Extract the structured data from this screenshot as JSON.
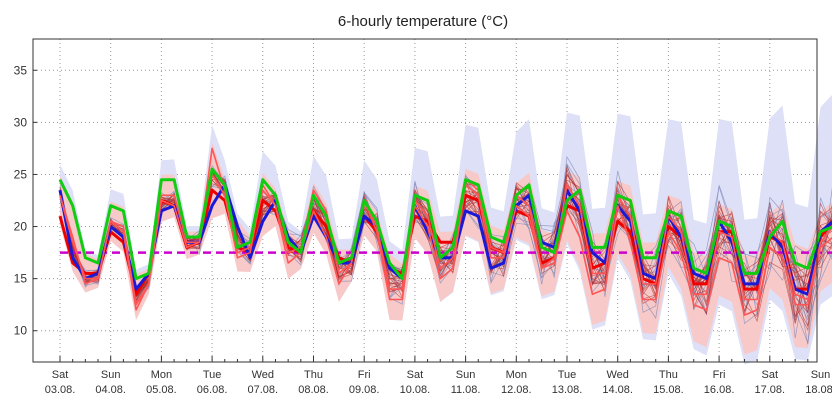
{
  "chart_data": {
    "type": "line",
    "title": "6-hourly temperature (°C)",
    "xlabel": "",
    "ylabel": "",
    "ylim": [
      7,
      38
    ],
    "y_ticks": [
      10,
      15,
      20,
      25,
      30,
      35
    ],
    "grid": true,
    "legend": "none",
    "x_ticks": [
      {
        "day": "Sat",
        "date": "03.08."
      },
      {
        "day": "Sun",
        "date": "04.08."
      },
      {
        "day": "Mon",
        "date": "05.08."
      },
      {
        "day": "Tue",
        "date": "06.08."
      },
      {
        "day": "Wed",
        "date": "07.08."
      },
      {
        "day": "Thu",
        "date": "08.08."
      },
      {
        "day": "Fri",
        "date": "09.08."
      },
      {
        "day": "Sat",
        "date": "10.08."
      },
      {
        "day": "Sun",
        "date": "11.08."
      },
      {
        "day": "Mon",
        "date": "12.08."
      },
      {
        "day": "Tue",
        "date": "13.08."
      },
      {
        "day": "Wed",
        "date": "14.08."
      },
      {
        "day": "Thu",
        "date": "15.08."
      },
      {
        "day": "Fri",
        "date": "16.08."
      },
      {
        "day": "Sat",
        "date": "17.08."
      },
      {
        "day": "Sun",
        "date": "18.08."
      }
    ],
    "x_step_hours": 6,
    "reference_line": {
      "value": 17.5,
      "color": "#cc00cc"
    },
    "colors": {
      "blue_spread_fill": "#dde0f7",
      "blue_members": "#7d88b8",
      "red_spread_fill": "#f7c9c9",
      "red_members": "#b03030",
      "blue_mean": "#1a1ad6",
      "red_mean": "#ee0000",
      "green_line": "#11cc11",
      "red_thin_line": "#ff5555"
    },
    "series": [
      {
        "values": [
          23.5,
          17.0,
          15.0,
          15.5,
          20.0,
          19.0,
          14.0,
          15.5,
          21.5,
          22.0,
          18.5,
          18.5,
          22.0,
          24.0,
          20.0,
          17.0,
          20.5,
          22.5,
          19.0,
          17.5,
          21.0,
          19.0,
          16.5,
          16.5,
          21.0,
          20.0,
          16.0,
          15.0,
          22.0,
          19.5,
          17.0,
          17.0,
          21.5,
          21.0,
          16.0,
          16.5,
          22.0,
          23.0,
          18.5,
          18.0,
          23.5,
          21.5,
          17.5,
          16.5,
          22.0,
          20.5,
          15.5,
          15.0,
          21.0,
          19.0,
          15.5,
          15.0,
          20.5,
          18.5,
          14.5,
          14.5,
          19.5,
          18.0,
          14.0,
          13.5,
          19.5,
          20.5
        ]
      },
      {
        "values": [
          21.0,
          16.5,
          15.5,
          15.5,
          19.5,
          18.5,
          13.5,
          15.5,
          22.5,
          22.0,
          18.0,
          18.5,
          23.5,
          22.5,
          18.0,
          17.5,
          22.5,
          21.5,
          18.0,
          17.5,
          21.5,
          20.0,
          17.0,
          16.5,
          21.0,
          19.5,
          16.0,
          15.5,
          21.0,
          20.5,
          18.5,
          18.5,
          23.0,
          22.5,
          18.0,
          17.5,
          21.5,
          21.0,
          16.5,
          17.0,
          22.0,
          21.5,
          16.0,
          16.5,
          20.5,
          19.5,
          15.0,
          14.5,
          20.0,
          19.0,
          14.5,
          14.5,
          19.5,
          19.5,
          14.0,
          14.0,
          19.0,
          18.5,
          14.0,
          14.0,
          19.0,
          20.5
        ]
      },
      {
        "values": [
          24.5,
          22.0,
          17.0,
          16.5,
          22.0,
          21.5,
          15.0,
          15.5,
          24.5,
          24.5,
          19.0,
          19.0,
          25.5,
          24.0,
          18.0,
          18.5,
          24.5,
          23.0,
          18.5,
          17.5,
          23.0,
          21.0,
          16.5,
          17.0,
          22.5,
          20.5,
          16.5,
          15.0,
          23.0,
          22.5,
          17.0,
          18.0,
          24.5,
          24.0,
          19.0,
          18.5,
          23.0,
          24.0,
          18.0,
          17.5,
          22.5,
          23.5,
          18.0,
          18.0,
          23.0,
          22.5,
          17.0,
          17.0,
          21.5,
          21.0,
          16.0,
          15.5,
          20.5,
          20.0,
          15.5,
          15.5,
          19.0,
          20.5,
          16.5,
          16.0,
          19.5,
          20.0
        ]
      },
      {
        "values": [
          23.0,
          19.0,
          14.5,
          15.0,
          20.5,
          19.5,
          12.0,
          14.5,
          22.5,
          22.0,
          18.0,
          18.5,
          25.0,
          23.0,
          17.0,
          17.5,
          24.0,
          22.0,
          16.5,
          17.5,
          21.5,
          19.0,
          14.5,
          16.5,
          22.5,
          19.5,
          13.0,
          13.0,
          22.0,
          20.0,
          15.0,
          16.0,
          24.0,
          23.0,
          17.0,
          17.0,
          22.0,
          21.0,
          16.0,
          16.5,
          21.5,
          19.0,
          13.5,
          14.0,
          22.0,
          18.5,
          13.0,
          13.0,
          19.5,
          17.5,
          12.5,
          12.0,
          17.0,
          16.5,
          11.5,
          12.0,
          18.0,
          17.0,
          12.5,
          12.5,
          18.0,
          19.0
        ]
      },
      {
        "values": [
          23.0,
          18.5,
          15.0,
          15.0,
          20.5,
          20.0,
          12.5,
          14.5,
          23.0,
          23.0,
          18.5,
          18.5,
          27.5,
          23.5,
          17.5,
          18.0,
          23.5,
          22.0,
          17.5,
          18.0,
          23.5,
          21.5,
          15.5,
          16.5,
          22.5,
          20.0,
          14.0,
          14.0,
          22.5,
          21.0,
          16.0,
          17.0,
          24.5,
          23.5,
          18.0,
          17.5,
          23.0,
          22.0,
          16.0,
          17.0,
          24.0,
          22.0,
          15.5,
          15.5,
          23.0,
          21.0,
          14.5,
          14.5,
          21.0,
          19.5,
          13.5,
          13.5,
          19.5,
          19.0,
          13.0,
          13.0,
          19.5,
          18.5,
          13.5,
          13.0,
          18.5,
          20.0
        ]
      }
    ]
  }
}
